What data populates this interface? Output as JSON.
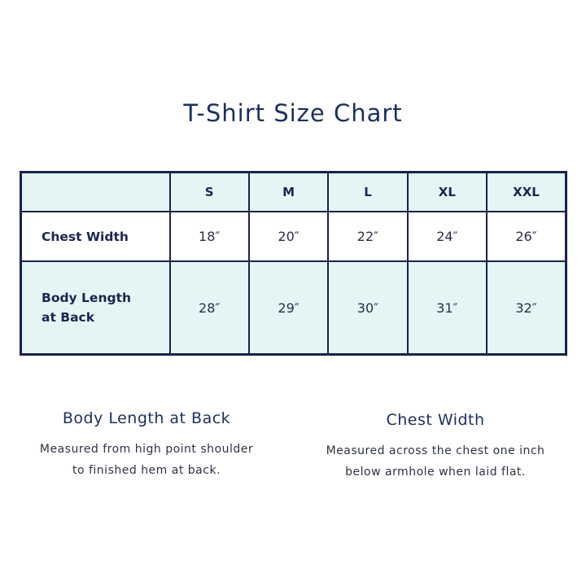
{
  "title": "T-Shirt Size Chart",
  "colors": {
    "navy": "#1a2348",
    "teal": "#e3f6f5"
  },
  "table": {
    "headers": [
      "",
      "S",
      "M",
      "L",
      "XL",
      "XXL"
    ],
    "rows": [
      {
        "label": "Chest Width",
        "values": [
          "18″",
          "20″",
          "22″",
          "24″",
          "26″"
        ]
      },
      {
        "label_line1": "Body Length",
        "label_line2": "at Back",
        "values": [
          "28″",
          "29″",
          "30″",
          "31″",
          "32″"
        ]
      }
    ]
  },
  "notes": [
    {
      "heading": "Body Length at Back",
      "line1": "Measured from high point shoulder",
      "line2": "to finished hem at back."
    },
    {
      "heading": "Chest Width",
      "line1": "Measured across the chest one inch",
      "line2": "below armhole when laid flat."
    }
  ]
}
